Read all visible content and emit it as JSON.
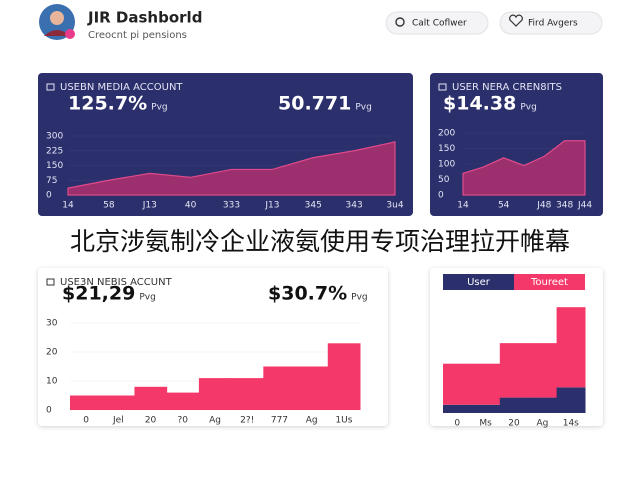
{
  "header": {
    "title": "JIR Dashborld",
    "subtitle": "Creocnt pi pensions"
  },
  "buttons": [
    "Calt Coflwer",
    "Fird Avgers"
  ],
  "banner": "北京涉氨制冷企业液氨使用专项治理拉开帷幕",
  "chart_data": [
    {
      "type": "area",
      "title": "USEBN MEDIA ACCOUNT",
      "stats": [
        {
          "value": "125.7%",
          "unit": "Pvg"
        },
        {
          "value": "50.771",
          "unit": "Pvg"
        }
      ],
      "categories": [
        "14",
        "58",
        "J13",
        "40",
        "333",
        "J13",
        "345",
        "343",
        "3u4"
      ],
      "series": [
        {
          "color": "#b0306e",
          "values": [
            35,
            75,
            110,
            90,
            130,
            130,
            190,
            225,
            270
          ]
        }
      ],
      "ylim": [
        0,
        300
      ],
      "yticks": [
        0,
        75,
        150,
        225,
        300
      ]
    },
    {
      "type": "area",
      "title": "USER NERA CREN8ITS",
      "stats": [
        {
          "value": "$14.38",
          "unit": "Pvg"
        }
      ],
      "categories": [
        "14",
        null,
        "54",
        null,
        "J48",
        "348",
        "J44"
      ],
      "series": [
        {
          "color": "#b0306e",
          "values": [
            70,
            90,
            120,
            95,
            125,
            175,
            175
          ]
        }
      ],
      "ylim": [
        0,
        200
      ],
      "yticks": [
        0,
        50,
        100,
        150,
        200
      ]
    },
    {
      "type": "bar",
      "title": "USE3N NEBIS ACCUNT",
      "stats": [
        {
          "value": "$21,29",
          "unit": "Pvg"
        },
        {
          "value": "$30.7%",
          "unit": "Pvg"
        }
      ],
      "categories": [
        "0",
        "Jel",
        "20",
        "?0",
        "Ag",
        "2?!",
        "777",
        "Ag",
        "1Us"
      ],
      "series": [
        {
          "color": "#f5386a",
          "values": [
            5,
            5,
            8,
            6,
            11,
            11,
            15,
            15,
            23
          ]
        }
      ],
      "ylim": [
        0,
        30
      ],
      "yticks": [
        0,
        10,
        20,
        30
      ]
    },
    {
      "type": "stacked-bar",
      "categories": [
        "0",
        "Ms",
        "20",
        "Ag",
        "14s"
      ],
      "series": [
        {
          "name": "User",
          "color": "#2b2f6b",
          "values": [
            8,
            8,
            15,
            15,
            25
          ]
        },
        {
          "name": "Toureet",
          "color": "#f5386a",
          "values": [
            40,
            40,
            53,
            53,
            78
          ]
        }
      ],
      "ylim": [
        0,
        110
      ]
    }
  ]
}
